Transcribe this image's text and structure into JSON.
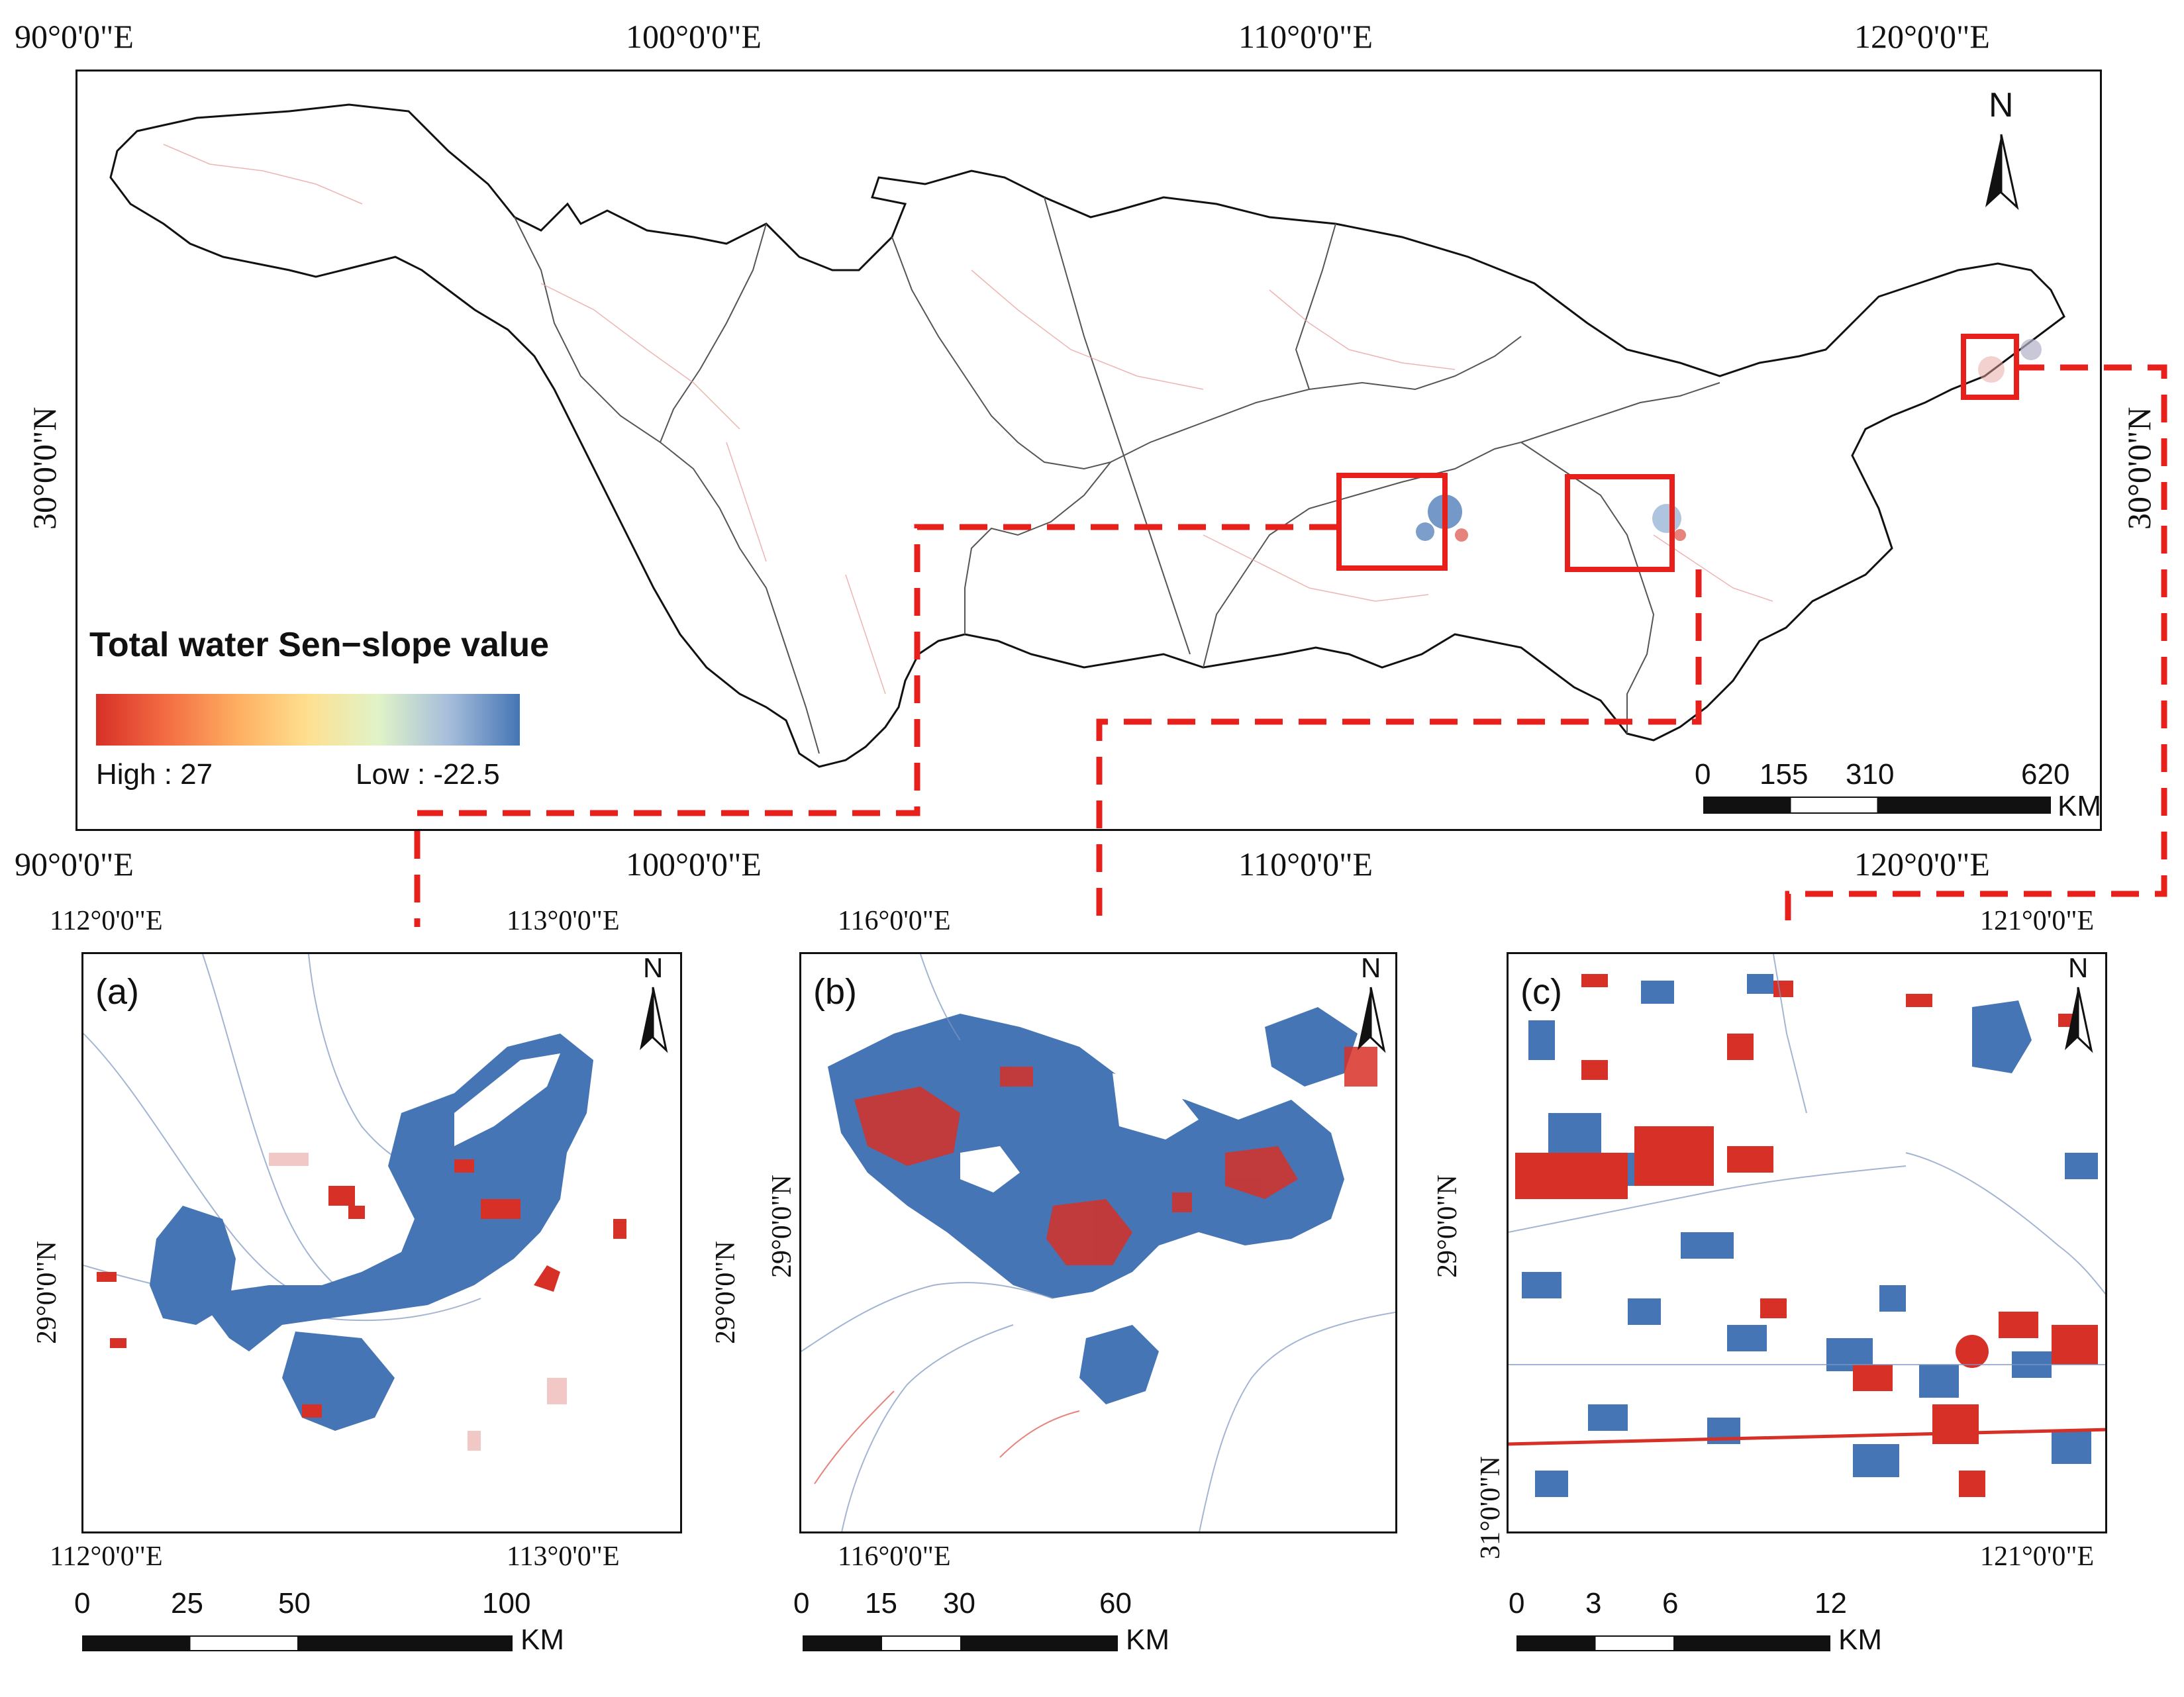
{
  "main_map": {
    "lon_labels": [
      "90°0'0\"E",
      "100°0'0\"E",
      "110°0'0\"E",
      "120°0'0\"E"
    ],
    "lat_label": "30°0'0\"N",
    "north_label": "N",
    "legend": {
      "title": "Total water Sen−slope value",
      "high_label": "High : 27",
      "low_label": "Low : -22.5",
      "colors": [
        "#d73027",
        "#f46d43",
        "#fdae61",
        "#fee090",
        "#e0f3c8",
        "#a6bddb",
        "#4575b4"
      ]
    },
    "scale": {
      "ticks": [
        "0",
        "155",
        "310",
        "620"
      ],
      "unit": "KM"
    }
  },
  "inset_a": {
    "tag": "(a)",
    "lon_labels": [
      "112°0'0\"E",
      "113°0'0\"E"
    ],
    "lat_label": "29°0'0\"N",
    "north_label": "N",
    "scale": {
      "ticks": [
        "0",
        "25",
        "50",
        "100"
      ],
      "unit": "KM"
    }
  },
  "inset_b": {
    "tag": "(b)",
    "lon_label": "116°0'0\"E",
    "lat_label": "29°0'0\"N",
    "north_label": "N",
    "scale": {
      "ticks": [
        "0",
        "15",
        "30",
        "60"
      ],
      "unit": "KM"
    }
  },
  "inset_c": {
    "tag": "(c)",
    "lon_label": "121°0'0\"E",
    "lat_label": "31°0'0\"N",
    "north_label": "N",
    "scale": {
      "ticks": [
        "0",
        "3",
        "6",
        "12"
      ],
      "unit": "KM"
    }
  },
  "colors": {
    "increase": "#d73027",
    "decrease": "#4575b4",
    "highlight": "#e8201c",
    "outline": "#111111"
  }
}
